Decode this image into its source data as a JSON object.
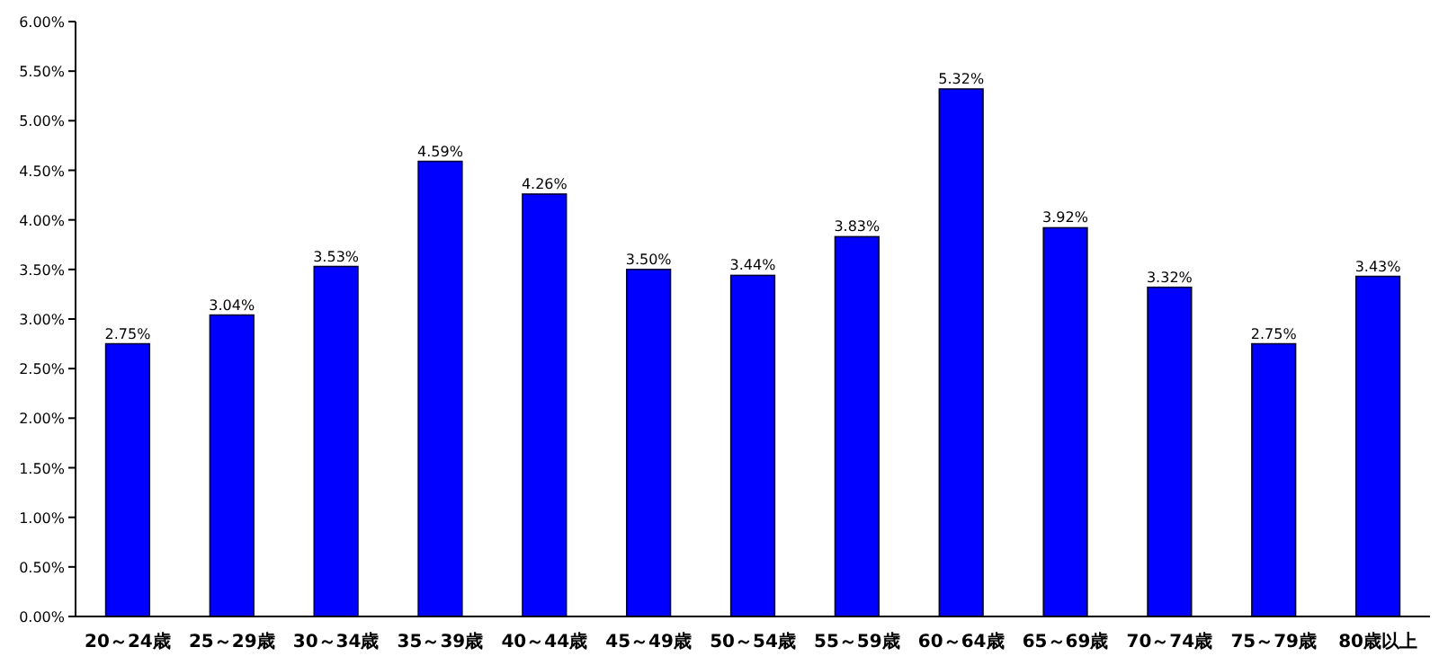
{
  "chart_data": {
    "type": "bar",
    "categories": [
      "20～24歳",
      "25～29歳",
      "30～34歳",
      "35～39歳",
      "40～44歳",
      "45～49歳",
      "50～54歳",
      "55～59歳",
      "60～64歳",
      "65～69歳",
      "70～74歳",
      "75～79歳",
      "80歳以上"
    ],
    "values": [
      2.75,
      3.04,
      3.53,
      4.59,
      4.26,
      3.5,
      3.44,
      3.83,
      5.32,
      3.92,
      3.32,
      2.75,
      3.43
    ],
    "value_labels": [
      "2.75%",
      "3.04%",
      "3.53%",
      "4.59%",
      "4.26%",
      "3.50%",
      "3.44%",
      "3.83%",
      "5.32%",
      "3.92%",
      "3.32%",
      "2.75%",
      "3.43%"
    ],
    "color": "#0000ff",
    "ylim": [
      0,
      6
    ],
    "yticks": [
      {
        "value": 0,
        "label": "0.00%"
      },
      {
        "value": 0.5,
        "label": "0.50%"
      },
      {
        "value": 1,
        "label": "1.00%"
      },
      {
        "value": 1.5,
        "label": "1.50%"
      },
      {
        "value": 2,
        "label": "2.00%"
      },
      {
        "value": 2.5,
        "label": "2.50%"
      },
      {
        "value": 3,
        "label": "3.00%"
      },
      {
        "value": 3.5,
        "label": "3.50%"
      },
      {
        "value": 4,
        "label": "4.00%"
      },
      {
        "value": 4.5,
        "label": "4.50%"
      },
      {
        "value": 5,
        "label": "5.00%"
      },
      {
        "value": 5.5,
        "label": "5.50%"
      },
      {
        "value": 6,
        "label": "6.00%"
      }
    ],
    "grid": false
  }
}
